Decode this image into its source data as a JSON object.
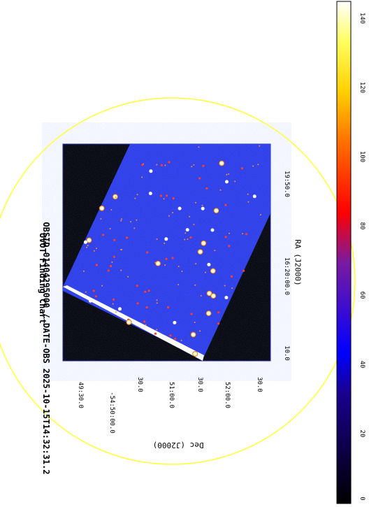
{
  "figure": {
    "title": "UVOT Finding Chart",
    "subtitle": "OBSID 01404295000 / DATE-OBS 2025-10-15T14:32:31.2",
    "xlabel": "RA (J2000)",
    "ylabel": "Dec (J2000)",
    "ra_ticks": [
      "10.0",
      "16:20:00.0",
      "19:50.0"
    ],
    "dec_ticks": [
      "49:30.0",
      "-54:50:00.0",
      "30.0",
      "51:00.0",
      "30.0",
      "52:00.0",
      "30.0"
    ],
    "colorbar": {
      "ticks": [
        "0",
        "20",
        "40",
        "60",
        "80",
        "100",
        "120",
        "140"
      ],
      "range": [
        0,
        145
      ],
      "colors": [
        "#000000",
        "#0000ff",
        "#ff0000",
        "#ffff00",
        "#ffffff"
      ]
    },
    "colors": {
      "background": "#ffffff",
      "image_frame": "#000000",
      "sky": "#2a3ae8",
      "circle": "#ffff33"
    }
  }
}
